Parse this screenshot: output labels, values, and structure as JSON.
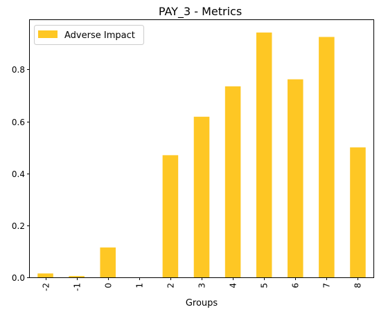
{
  "chart_data": {
    "type": "bar",
    "title": "PAY_3 - Metrics",
    "xlabel": "Groups",
    "ylabel": "",
    "categories": [
      "-2",
      "-1",
      "0",
      "1",
      "2",
      "3",
      "4",
      "5",
      "6",
      "7",
      "8"
    ],
    "series": [
      {
        "name": "Adverse Impact",
        "values": [
          0.015,
          0.005,
          0.115,
          0.0,
          0.47,
          0.618,
          0.735,
          0.942,
          0.762,
          0.925,
          0.5
        ],
        "color": "#fec724"
      }
    ],
    "ylim": [
      0,
      0.99
    ],
    "yticks": [
      0.0,
      0.2,
      0.4,
      0.6,
      0.8
    ],
    "ytick_labels": [
      "0.0",
      "0.2",
      "0.4",
      "0.6",
      "0.8"
    ],
    "xtick_rotation": 90,
    "grid": false,
    "legend_position": "upper-left"
  }
}
